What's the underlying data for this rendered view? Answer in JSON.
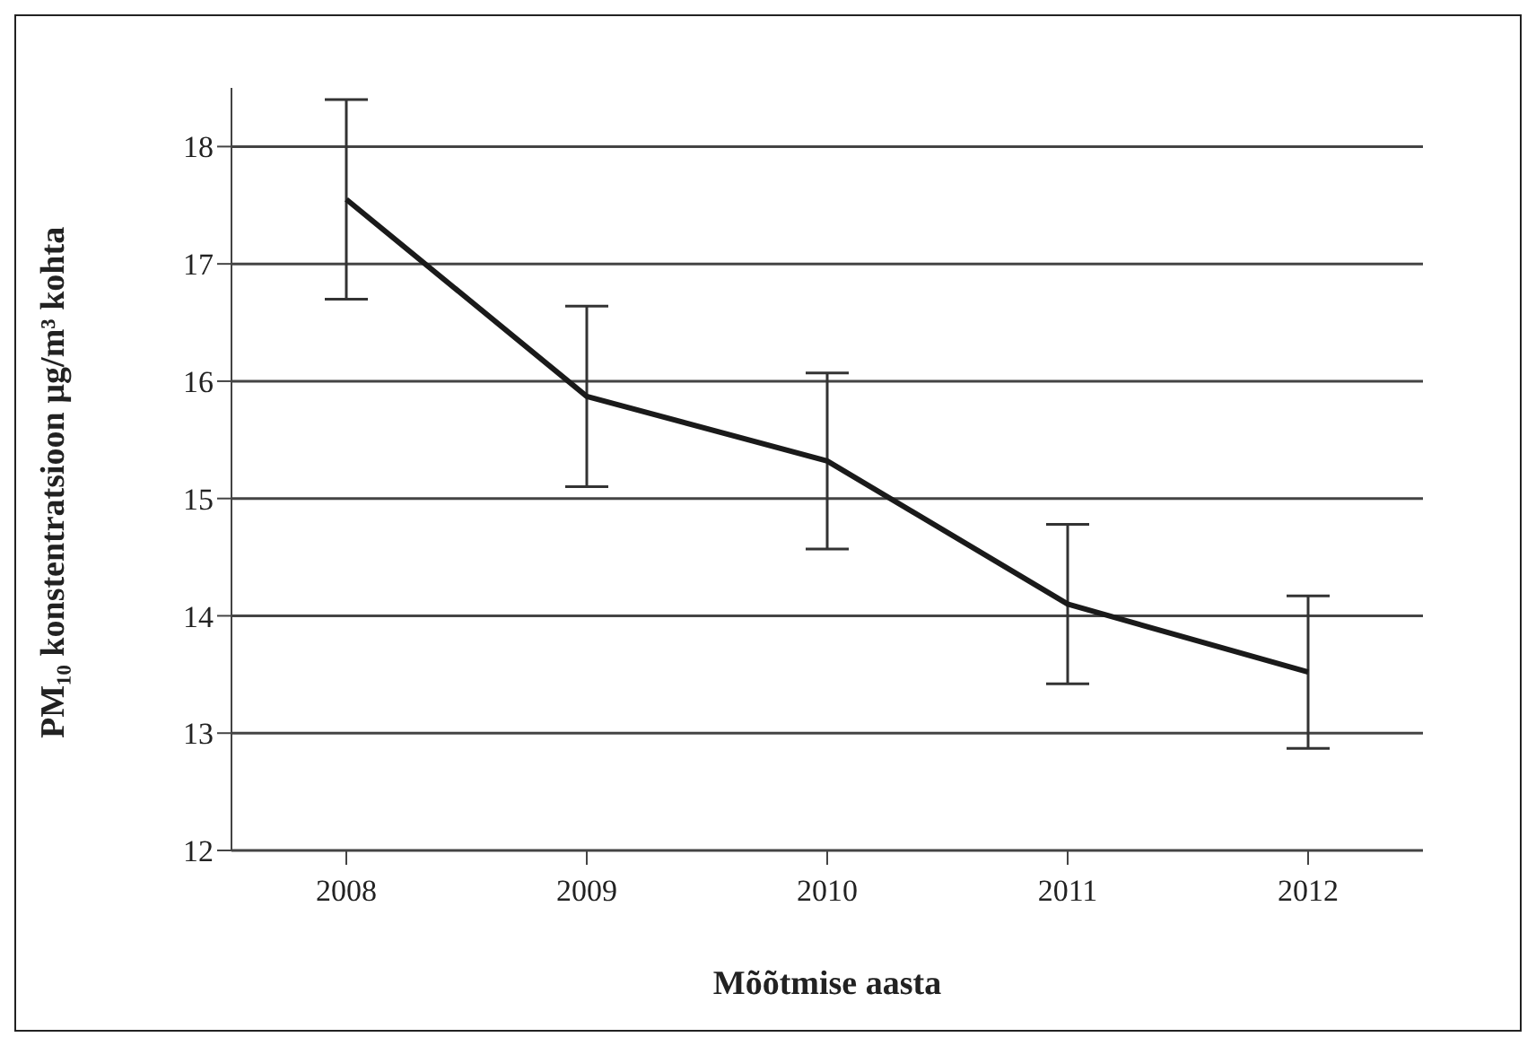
{
  "chart_data": {
    "type": "line",
    "xlabel": "Mõõtmise aasta",
    "ylabel": "PM₁₀ konstentratsioon µg/m³ kohta",
    "categories": [
      "2008",
      "2009",
      "2010",
      "2011",
      "2012"
    ],
    "series": [
      {
        "color": "#1a1a1a",
        "values": [
          17.55,
          15.87,
          15.32,
          14.1,
          13.52
        ],
        "errors": [
          0.85,
          0.77,
          0.75,
          0.68,
          0.65
        ]
      }
    ],
    "ylim": [
      12,
      18.5
    ],
    "yticks": [
      12,
      13,
      14,
      15,
      16,
      17,
      18
    ],
    "grid": "y",
    "marker": "none",
    "line_style": "solid"
  }
}
